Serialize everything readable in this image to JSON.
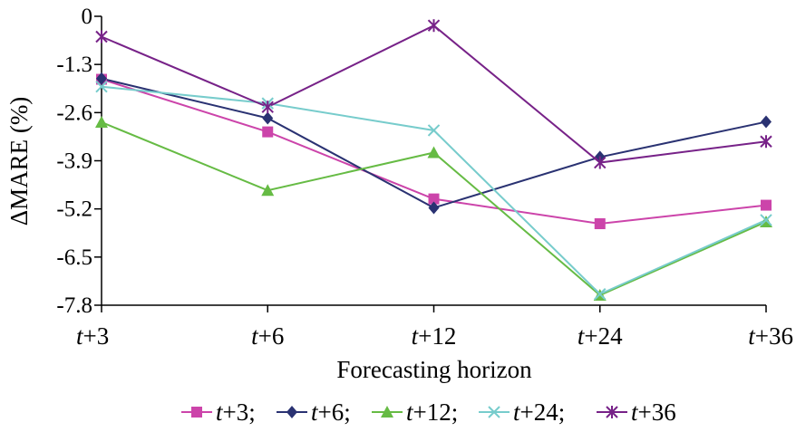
{
  "chart_data": {
    "type": "line",
    "categories": [
      "t+3",
      "t+6",
      "t+12",
      "t+24",
      "t+36"
    ],
    "xlabel": "Forecasting horizon",
    "ylabel": "ΔMARE (%)",
    "ylim": [
      -7.8,
      0
    ],
    "yticks": [
      "0",
      "-1.3",
      "-2.6",
      "-3.9",
      "-5.2",
      "-6.5",
      "-7.8"
    ],
    "grid": false,
    "legend_position": "bottom",
    "series": [
      {
        "name": "t+3;",
        "color": "#cc44aa",
        "marker": "square",
        "values": [
          -1.7,
          -3.12,
          -4.93,
          -5.6,
          -5.1
        ]
      },
      {
        "name": "t+6;",
        "color": "#2a3272",
        "marker": "diamond",
        "values": [
          -1.68,
          -2.75,
          -5.17,
          -3.8,
          -2.85
        ]
      },
      {
        "name": "t+12;",
        "color": "#66bb44",
        "marker": "triangle",
        "values": [
          -2.86,
          -4.7,
          -3.68,
          -7.53,
          -5.55
        ]
      },
      {
        "name": "t+24;",
        "color": "#77cccc",
        "marker": "x",
        "values": [
          -1.9,
          -2.35,
          -3.08,
          -7.5,
          -5.5
        ]
      },
      {
        "name": "t+36",
        "color": "#772288",
        "marker": "asterisk",
        "values": [
          -0.55,
          -2.45,
          -0.25,
          -3.95,
          -3.38
        ]
      }
    ]
  }
}
